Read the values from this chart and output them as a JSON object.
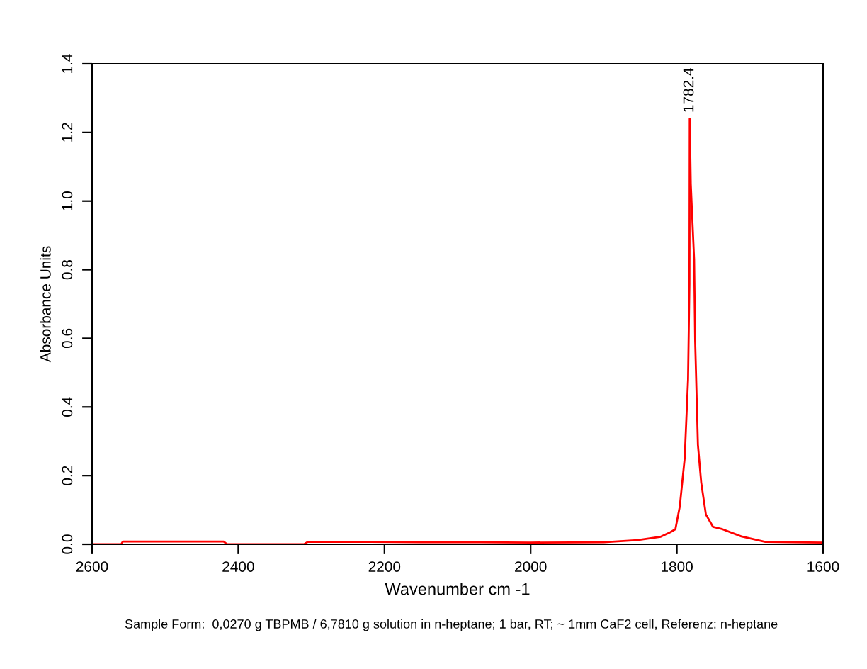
{
  "chart_data": {
    "type": "line",
    "xlabel": "Wavenumber cm -1",
    "ylabel": "Absorbance Units",
    "xlim": [
      2600,
      1600
    ],
    "xticks": [
      2600,
      2400,
      2200,
      2000,
      1800,
      1600
    ],
    "ylim": [
      0,
      1.4
    ],
    "yticks": [
      {
        "value": 0,
        "label": "0.0"
      },
      0.2,
      0.4,
      0.6,
      0.8,
      {
        "value": 1,
        "label": "1.0"
      },
      1.2,
      1.4
    ],
    "grid": false,
    "legend": false,
    "marker": "none",
    "line_style": "solid",
    "series": [
      {
        "color": "#ff0000",
        "x": [
          2600,
          2560,
          2558,
          2535,
          2530,
          2420,
          2415,
          2310,
          2305,
          2220,
          2150,
          2070,
          2000,
          1900,
          1854,
          1822,
          1809,
          1802,
          1796,
          1789.3,
          1784.7,
          1782.8,
          1782.4,
          1781,
          1776.4,
          1775,
          1771.2,
          1766.7,
          1760.3,
          1750.6,
          1737.6,
          1711.8,
          1679,
          1600
        ],
        "values": [
          0.0,
          0.0,
          0.008,
          0.008,
          0.008,
          0.008,
          0.0,
          0.0,
          0.007,
          0.007,
          0.006,
          0.006,
          0.005,
          0.006,
          0.012,
          0.022,
          0.035,
          0.044,
          0.11,
          0.25,
          0.48,
          0.76,
          1.24,
          1.05,
          0.83,
          0.595,
          0.29,
          0.18,
          0.087,
          0.051,
          0.044,
          0.023,
          0.007,
          0.005
        ]
      }
    ],
    "annotations": [
      {
        "text": "1782.4",
        "x": 1782.4,
        "y": 1.24
      },
      "Sample Form:  0,0270 g TBPMB / 6,7810 g solution in n-heptane; 1 bar, RT; ~ 1mm CaF2 cell, Referenz: n-heptane"
    ]
  }
}
